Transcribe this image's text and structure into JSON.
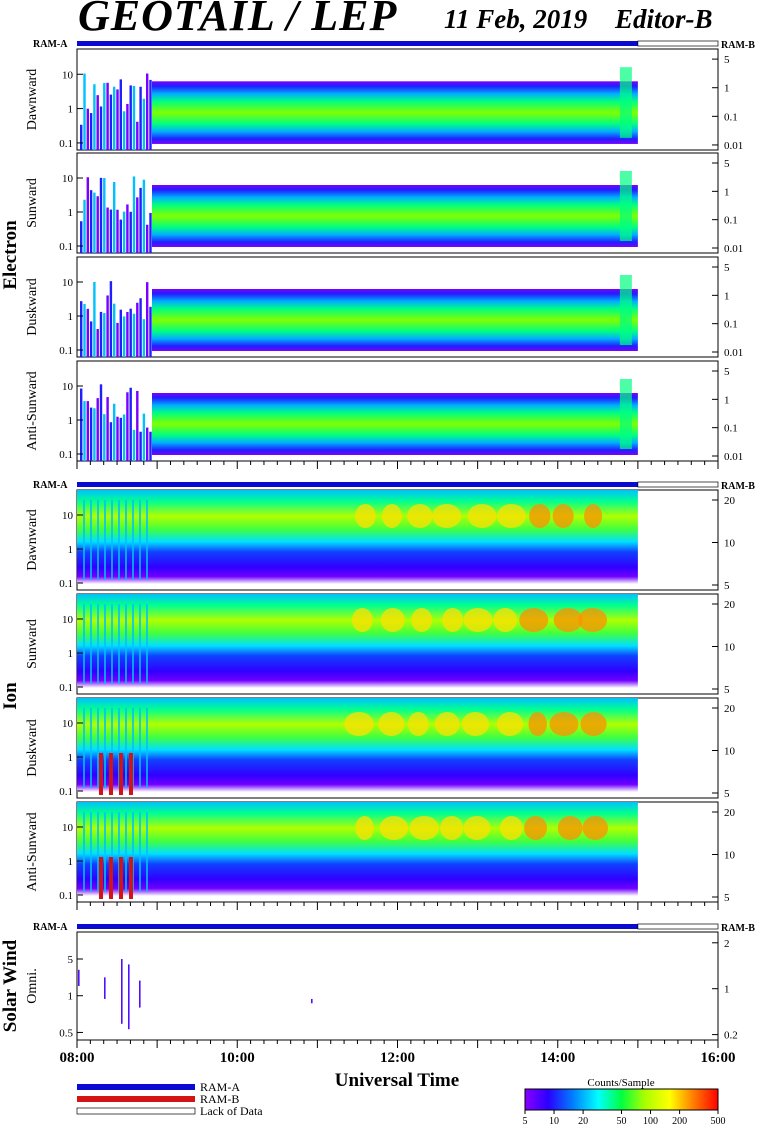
{
  "header": {
    "title": "GEOTAIL / LEP",
    "date": "11 Feb, 2019",
    "editor": "Editor-B"
  },
  "chart_data": {
    "type": "heatmap",
    "xlabel": "Universal Time",
    "x_tick_labels": [
      "08:00",
      "10:00",
      "12:00",
      "14:00",
      "16:00"
    ],
    "xlim": [
      "08:00",
      "16:00"
    ],
    "data_end": "15:00",
    "groups": [
      {
        "name": "Electron",
        "ram_a": "RAM-A",
        "ram_b": "RAM-B",
        "left_ticks": [
          "10",
          "1",
          "0.1"
        ],
        "right_ticks": [
          "5",
          "1",
          "0.1",
          "0.01"
        ],
        "panels": [
          "Dawnward",
          "Sunward",
          "Duskward",
          "Anti-Sunward"
        ]
      },
      {
        "name": "Ion",
        "ram_a": "RAM-A",
        "ram_b": "RAM-B",
        "left_ticks": [
          "10",
          "1",
          "0.1"
        ],
        "right_ticks": [
          "20",
          "10",
          "5"
        ],
        "panels": [
          "Dawnward",
          "Sunward",
          "Duskward",
          "Anti-Sunward"
        ]
      },
      {
        "name": "Solar Wind",
        "ram_a": "RAM-A",
        "ram_b": "RAM-B",
        "left_ticks": [
          "5",
          "1",
          "0.5"
        ],
        "right_ticks": [
          "2",
          "1",
          "0.2"
        ],
        "panels": [
          "Omni."
        ]
      }
    ],
    "legend": {
      "items": [
        {
          "label": "RAM-A",
          "color": "#0a0ad2"
        },
        {
          "label": "RAM-B",
          "color": "#d21414"
        },
        {
          "label": "Lack of Data",
          "color": "#ffffff"
        }
      ]
    },
    "colorbar": {
      "label": "Counts/Sample",
      "ticks": [
        "5",
        "10",
        "20",
        "50",
        "100",
        "200",
        "500"
      ],
      "range": [
        5,
        500
      ],
      "scale": "log"
    }
  }
}
